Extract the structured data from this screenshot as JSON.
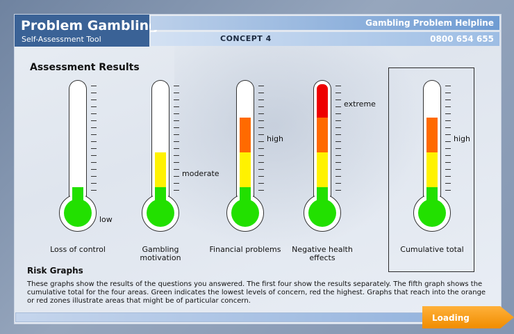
{
  "header": {
    "title": "Problem Gambling",
    "subtitle": "Self-Assessment Tool",
    "concept": "CONCEPT 4",
    "helpline_label": "Gambling Problem Helpline",
    "helpline_number": "0800 654 655"
  },
  "results": {
    "title": "Assessment Results",
    "thermometers": [
      {
        "label": "Loss of control",
        "level": "low",
        "level_index": 1
      },
      {
        "label": "Gambling motivation",
        "level": "moderate",
        "level_index": 2
      },
      {
        "label": "Financial problems",
        "level": "high",
        "level_index": 3
      },
      {
        "label": "Negative health effects",
        "level": "extreme",
        "level_index": 4
      },
      {
        "label": "Cumulative total",
        "level": "high",
        "level_index": 3
      }
    ],
    "colors": {
      "green": "#22e000",
      "yellow": "#fff200",
      "orange": "#ff6a00",
      "red": "#ee0000"
    }
  },
  "risk": {
    "title": "Risk Graphs",
    "text": "These graphs show the results of the questions you answered. The first four show the results separately. The fifth graph shows the cumulative total for the four areas.  Green indicates the lowest levels of concern, red the highest. Graphs that reach into the orange or red zones illustrate areas that might be of particular concern."
  },
  "footer": {
    "loading": "Loading"
  }
}
